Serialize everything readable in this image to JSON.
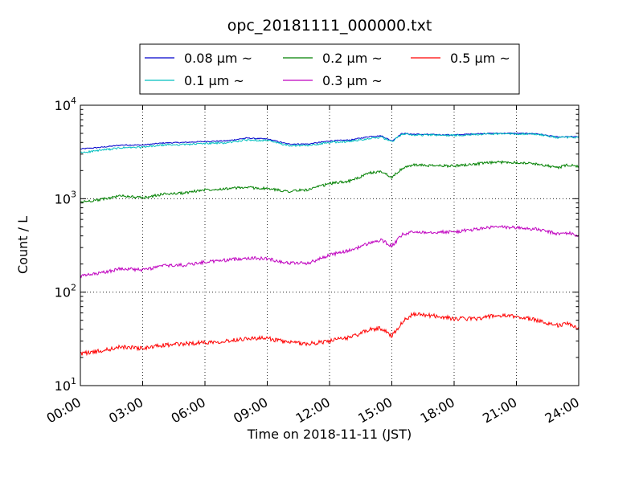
{
  "chart_data": {
    "type": "line",
    "title": "opc_20181111_000000.txt",
    "xlabel": "Time on 2018-11-11 (JST)",
    "ylabel": "Count / L",
    "yscale": "log",
    "xlim": [
      0,
      24
    ],
    "ylim": [
      10,
      10000
    ],
    "grid": true,
    "legend_position": "top-center",
    "x_ticks": [
      0,
      3,
      6,
      9,
      12,
      15,
      18,
      21,
      24
    ],
    "x_tick_labels": [
      "00:00",
      "03:00",
      "06:00",
      "09:00",
      "12:00",
      "15:00",
      "18:00",
      "21:00",
      "24:00"
    ],
    "y_ticks": [
      {
        "value": 10,
        "base": "10",
        "exp": "1"
      },
      {
        "value": 100,
        "base": "10",
        "exp": "2"
      },
      {
        "value": 1000,
        "base": "10",
        "exp": "3"
      },
      {
        "value": 10000,
        "base": "10",
        "exp": "4"
      }
    ],
    "x": [
      0,
      1,
      2,
      3,
      4,
      5,
      6,
      7,
      8,
      9,
      10,
      11,
      12,
      13,
      14,
      14.5,
      15,
      15.5,
      16,
      17,
      18,
      19,
      20,
      21,
      22,
      23,
      23.5,
      24
    ],
    "series": [
      {
        "name": "0.08 µm ~",
        "color": "#0000cc",
        "values": [
          3400,
          3550,
          3750,
          3750,
          3950,
          4000,
          4100,
          4150,
          4450,
          4350,
          3850,
          3850,
          4150,
          4250,
          4650,
          4700,
          4150,
          5000,
          4900,
          4850,
          4800,
          4950,
          5000,
          5000,
          4950,
          4550,
          4600,
          4600
        ]
      },
      {
        "name": "0.1 µm ~",
        "color": "#00bfbf",
        "values": [
          3100,
          3300,
          3500,
          3550,
          3750,
          3800,
          3900,
          3950,
          4250,
          4200,
          3700,
          3700,
          4000,
          4100,
          4450,
          4550,
          4050,
          4950,
          4800,
          4800,
          4750,
          4900,
          4950,
          4950,
          4900,
          4500,
          4550,
          4500
        ]
      },
      {
        "name": "0.2 µm ~",
        "color": "#008000",
        "values": [
          920,
          980,
          1080,
          1020,
          1120,
          1150,
          1250,
          1280,
          1320,
          1280,
          1200,
          1250,
          1450,
          1550,
          1900,
          1950,
          1700,
          2100,
          2300,
          2250,
          2250,
          2350,
          2450,
          2450,
          2350,
          2150,
          2300,
          2200
        ]
      },
      {
        "name": "0.3 µm ~",
        "color": "#bf00bf",
        "values": [
          148,
          160,
          180,
          172,
          192,
          195,
          210,
          220,
          232,
          228,
          205,
          205,
          250,
          280,
          340,
          360,
          310,
          410,
          440,
          440,
          440,
          470,
          500,
          490,
          470,
          420,
          430,
          400
        ]
      },
      {
        "name": "0.5 µm ~",
        "color": "#ff0000",
        "values": [
          22,
          23.5,
          26,
          25,
          27,
          28,
          29,
          30,
          32,
          32,
          29,
          28,
          30,
          33,
          40,
          41,
          34,
          48,
          58,
          56,
          52,
          52,
          56,
          55,
          50,
          44,
          46,
          41
        ]
      }
    ]
  }
}
